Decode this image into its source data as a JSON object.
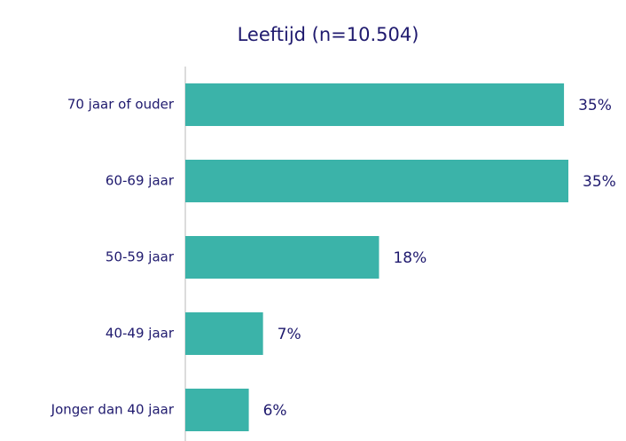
{
  "chart_data": {
    "type": "bar",
    "orientation": "horizontal",
    "title": "Leeftijd (n=10.504)",
    "categories": [
      "70 jaar of ouder",
      "60-69 jaar",
      "50-59 jaar",
      "40-49 jaar",
      "Jonger dan 40 jaar"
    ],
    "values": [
      34.6,
      35.0,
      17.7,
      7.1,
      5.8
    ],
    "value_labels": [
      "35%",
      "35%",
      "18%",
      "7%",
      "6%"
    ],
    "color": "#3bb3a9"
  }
}
